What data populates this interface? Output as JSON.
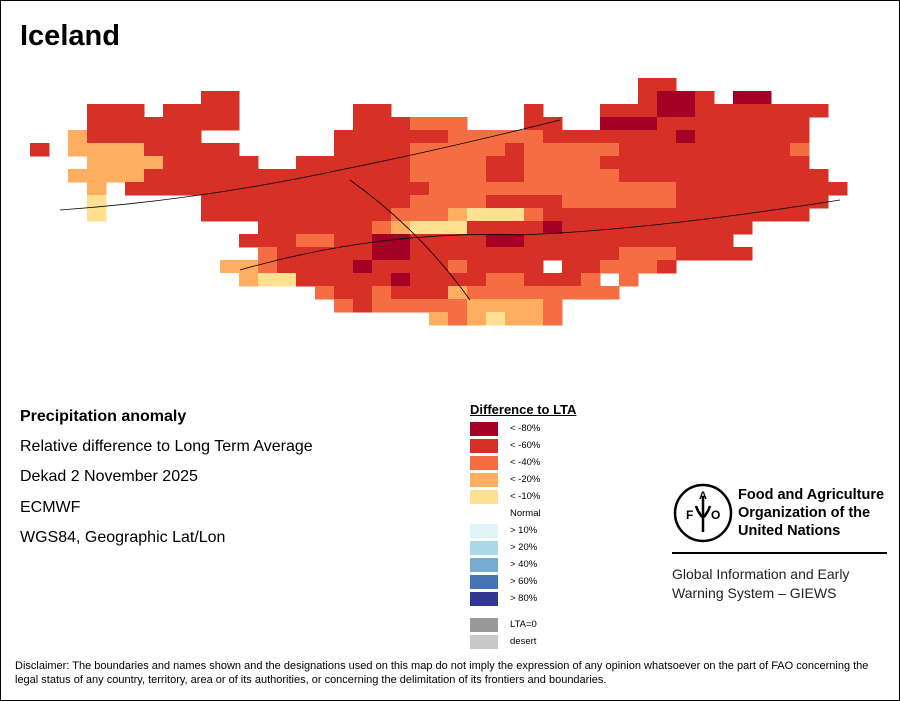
{
  "title": "Iceland",
  "info": {
    "heading": "Precipitation anomaly",
    "subtitle": "Relative difference to Long Term Average",
    "period": "Dekad 2 November 2025",
    "source": "ECMWF",
    "projection": "WGS84, Geographic Lat/Lon"
  },
  "legend": {
    "title": "Difference to LTA",
    "items": [
      {
        "code": "1",
        "label": "< -80%",
        "color": "#a50026"
      },
      {
        "code": "2",
        "label": "< -60%",
        "color": "#d73027"
      },
      {
        "code": "3",
        "label": "< -40%",
        "color": "#f46d43"
      },
      {
        "code": "4",
        "label": "< -20%",
        "color": "#fdae61"
      },
      {
        "code": "5",
        "label": "< -10%",
        "color": "#fee090"
      },
      {
        "code": "N",
        "label": "Normal",
        "color": "#ffffff"
      },
      {
        "code": "6",
        "label": "> 10%",
        "color": "#e0f3f8"
      },
      {
        "code": "7",
        "label": "> 20%",
        "color": "#abd9e9"
      },
      {
        "code": "8",
        "label": "> 40%",
        "color": "#74add1"
      },
      {
        "code": "9",
        "label": "> 60%",
        "color": "#4575b4"
      },
      {
        "code": "0",
        "label": "> 80%",
        "color": "#313695"
      },
      {
        "code": "Z",
        "label": "LTA=0",
        "color": "#999999"
      },
      {
        "code": "D",
        "label": "desert",
        "color": "#c8c8c8"
      }
    ]
  },
  "anomaly_grid": [
    "................................22..........",
    ".........22.....................2112.11.....",
    "...222.2222......22.......2...222112222222..",
    "...22222222......222333...22..11122222222...",
    "..4222222.......2222223333322222221222222...",
    "2.444422222.....2222333332333332222222223...",
    "...444422222..222222333322333322222222222...",
    "..4444222222222222223333223333322222222222..",
    "...4.22222222222222223333333333333222222222.",
    "...5.....222222222223333222233333322222222..",
    "...5.....22222222223334555322222222222222...",
    "............22222234555222212222222222......",
    "...........22233221122221122222222222.......",
    "............32222211222222222223332222......",
    "..........44322221222232222.223332..........",
    "..........N4552222212222332223.3............",
    "...............3223222433333333.............",
    "................323333344443................",
    ".....................4345443................"
  ],
  "logo": {
    "lettering": "FAO FIAT PANIS",
    "org_name": [
      "Food and Agriculture",
      "Organization of the",
      "United Nations"
    ],
    "program": [
      "Global Information and Early",
      "Warning System – GIEWS"
    ]
  },
  "disclaimer": "Disclaimer: The boundaries and names shown and the designations used on this map do not imply the expression of any opinion whatsoever on the part of FAO concerning the legal status of any country, territory, area or of its authorities, or concerning the delimitation of its frontiers and boundaries."
}
